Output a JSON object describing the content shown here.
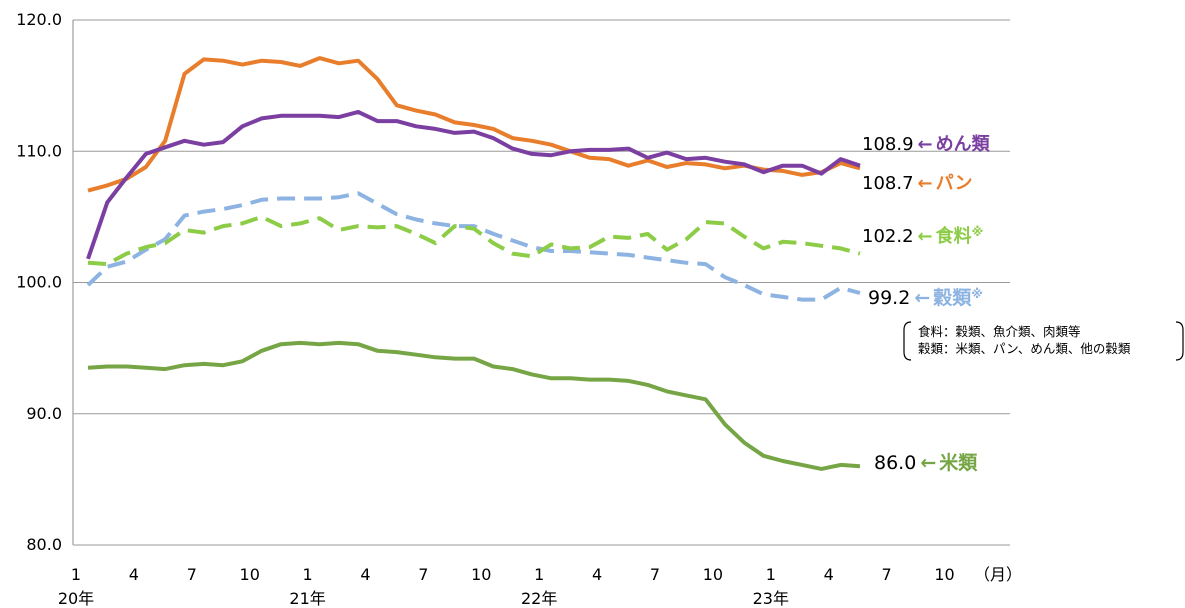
{
  "chart_data": {
    "type": "line",
    "title": "",
    "xlabel": "",
    "ylabel": "",
    "ylim": [
      80,
      120
    ],
    "yticks": [
      "80.0",
      "90.0",
      "100.0",
      "110.0",
      "120.0"
    ],
    "grid": true,
    "x_month_ticks": [
      {
        "index": 0,
        "label": "1"
      },
      {
        "index": 3,
        "label": "4"
      },
      {
        "index": 6,
        "label": "7"
      },
      {
        "index": 9,
        "label": "10"
      },
      {
        "index": 12,
        "label": "1"
      },
      {
        "index": 15,
        "label": "4"
      },
      {
        "index": 18,
        "label": "7"
      },
      {
        "index": 21,
        "label": "10"
      },
      {
        "index": 24,
        "label": "1"
      },
      {
        "index": 27,
        "label": "4"
      },
      {
        "index": 30,
        "label": "7"
      },
      {
        "index": 33,
        "label": "10"
      },
      {
        "index": 36,
        "label": "1"
      },
      {
        "index": 39,
        "label": "4"
      },
      {
        "index": 42,
        "label": "7"
      },
      {
        "index": 45,
        "label": "10"
      }
    ],
    "x_unit_label": "（月）",
    "x_year_labels": [
      {
        "index": 0,
        "label": "20年"
      },
      {
        "index": 12,
        "label": "21年"
      },
      {
        "index": 24,
        "label": "22年"
      },
      {
        "index": 36,
        "label": "23年"
      }
    ],
    "note_lines": [
      "食料：穀類、魚介類、肉類等",
      "穀類：米類、パン、めん類、他の穀類"
    ],
    "series": [
      {
        "name": "めん類",
        "end_value": "108.9",
        "arrow": "←",
        "marker": "",
        "color": "#7a3fa0",
        "dash": false,
        "values": [
          101.8,
          106.1,
          108.0,
          109.8,
          110.3,
          110.8,
          110.5,
          110.7,
          111.9,
          112.5,
          112.7,
          112.7,
          112.7,
          112.6,
          113.0,
          112.3,
          112.3,
          111.9,
          111.7,
          111.4,
          111.5,
          111.0,
          110.2,
          109.8,
          109.7,
          110.0,
          110.1,
          110.1,
          110.2,
          109.5,
          109.9,
          109.4,
          109.5,
          109.2,
          109.0,
          108.4,
          108.9,
          108.9,
          108.3,
          109.4,
          108.9
        ]
      },
      {
        "name": "パン",
        "end_value": "108.7",
        "arrow": "←",
        "marker": "",
        "color": "#e87d2c",
        "dash": false,
        "values": [
          107.0,
          107.4,
          107.9,
          108.8,
          110.8,
          115.9,
          117.0,
          116.9,
          116.6,
          116.9,
          116.8,
          116.5,
          117.1,
          116.7,
          116.9,
          115.5,
          113.5,
          113.1,
          112.8,
          112.2,
          112.0,
          111.7,
          111.0,
          110.8,
          110.5,
          110.0,
          109.5,
          109.4,
          108.9,
          109.3,
          108.8,
          109.1,
          109.0,
          108.7,
          108.9,
          108.6,
          108.5,
          108.2,
          108.4,
          109.1,
          108.7
        ]
      },
      {
        "name": "食料",
        "end_value": "102.2",
        "arrow": "←",
        "marker": "※",
        "color": "#8ccc46",
        "dash": true,
        "values": [
          101.5,
          101.4,
          102.2,
          102.7,
          103.0,
          104.0,
          103.8,
          104.3,
          104.5,
          105.0,
          104.3,
          104.5,
          104.9,
          104.0,
          104.3,
          104.2,
          104.3,
          103.7,
          103.0,
          104.3,
          104.1,
          103.0,
          102.2,
          102.0,
          102.9,
          102.6,
          102.7,
          103.5,
          103.4,
          103.7,
          102.5,
          103.3,
          104.6,
          104.5,
          103.5,
          102.6,
          103.1,
          103.0,
          102.8,
          102.6,
          102.2
        ]
      },
      {
        "name": "穀類",
        "end_value": "99.2",
        "arrow": "←",
        "marker": "※",
        "color": "#8db3e2",
        "dash": true,
        "values": [
          99.8,
          101.2,
          101.6,
          102.5,
          103.3,
          105.1,
          105.4,
          105.6,
          105.9,
          106.3,
          106.4,
          106.4,
          106.4,
          106.5,
          106.8,
          106.0,
          105.2,
          104.8,
          104.5,
          104.3,
          104.3,
          103.7,
          103.2,
          102.7,
          102.4,
          102.4,
          102.3,
          102.2,
          102.1,
          101.9,
          101.7,
          101.5,
          101.4,
          100.4,
          99.8,
          99.1,
          98.9,
          98.7,
          98.7,
          99.6,
          99.2
        ]
      },
      {
        "name": "米類",
        "end_value": "86.0",
        "arrow": "←",
        "marker": "",
        "color": "#76a545",
        "dash": false,
        "values": [
          93.5,
          93.6,
          93.6,
          93.5,
          93.4,
          93.7,
          93.8,
          93.7,
          94.0,
          94.8,
          95.3,
          95.4,
          95.3,
          95.4,
          95.3,
          94.8,
          94.7,
          94.5,
          94.3,
          94.2,
          94.2,
          93.6,
          93.4,
          93.0,
          92.7,
          92.7,
          92.6,
          92.6,
          92.5,
          92.2,
          91.7,
          91.4,
          91.1,
          89.2,
          87.8,
          86.8,
          86.4,
          86.1,
          85.8,
          86.1,
          86.0
        ]
      }
    ]
  }
}
